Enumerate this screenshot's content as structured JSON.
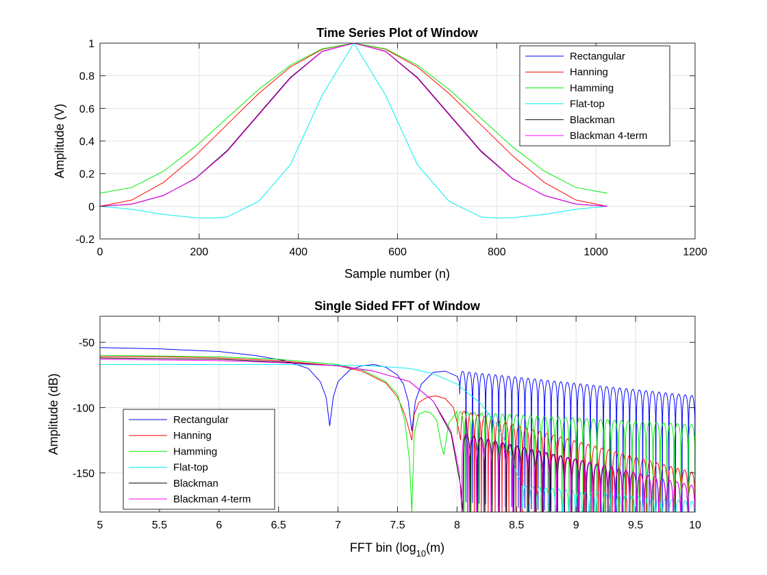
{
  "chart_data": [
    {
      "type": "line",
      "title": "Time Series Plot of Window",
      "xlabel": "Sample number (n)",
      "ylabel": "Amplitude (V)",
      "xlim": [
        0,
        1200
      ],
      "ylim": [
        -0.2,
        1
      ],
      "xticks": [
        0,
        200,
        400,
        600,
        800,
        1000,
        1200
      ],
      "yticks": [
        -0.2,
        0,
        0.2,
        0.4,
        0.6,
        0.8,
        1
      ],
      "xtick_labels": [
        "0",
        "200",
        "400",
        "600",
        "800",
        "1000",
        "1200"
      ],
      "ytick_labels": [
        "-0.2",
        "0",
        "0.2",
        "0.4",
        "0.6",
        "0.8",
        "1"
      ],
      "grid": true,
      "legend_position": "top-right",
      "series": [
        {
          "name": "Rectangular",
          "color": "#0000ff",
          "x": [
            0,
            1023
          ],
          "y": [
            1,
            1
          ]
        },
        {
          "name": "Hanning",
          "color": "#ff0000",
          "x": [
            0,
            64,
            128,
            192,
            256,
            320,
            384,
            448,
            512,
            576,
            640,
            704,
            768,
            832,
            896,
            960,
            1023
          ],
          "y": [
            0,
            0.038,
            0.146,
            0.309,
            0.5,
            0.691,
            0.854,
            0.962,
            1,
            0.962,
            0.854,
            0.691,
            0.5,
            0.309,
            0.146,
            0.038,
            0
          ]
        },
        {
          "name": "Hamming",
          "color": "#00ee00",
          "x": [
            0,
            64,
            128,
            192,
            256,
            320,
            384,
            448,
            512,
            576,
            640,
            704,
            768,
            832,
            896,
            960,
            1023
          ],
          "y": [
            0.08,
            0.115,
            0.215,
            0.364,
            0.54,
            0.716,
            0.865,
            0.965,
            1,
            0.965,
            0.865,
            0.716,
            0.54,
            0.364,
            0.215,
            0.115,
            0.08
          ]
        },
        {
          "name": "Flat-top",
          "color": "#00eeee",
          "x": [
            0,
            64,
            128,
            192,
            224,
            256,
            320,
            384,
            448,
            512,
            576,
            640,
            704,
            768,
            800,
            832,
            896,
            960,
            1023
          ],
          "y": [
            0,
            -0.018,
            -0.05,
            -0.07,
            -0.072,
            -0.066,
            0.03,
            0.255,
            0.68,
            1,
            0.68,
            0.255,
            0.03,
            -0.066,
            -0.072,
            -0.07,
            -0.05,
            -0.018,
            0
          ]
        },
        {
          "name": "Blackman",
          "color": "#000000",
          "x": [
            0,
            64,
            128,
            192,
            256,
            320,
            384,
            448,
            512,
            576,
            640,
            704,
            768,
            832,
            896,
            960,
            1023
          ],
          "y": [
            0,
            0.013,
            0.066,
            0.17,
            0.34,
            0.565,
            0.79,
            0.95,
            1,
            0.95,
            0.79,
            0.565,
            0.34,
            0.17,
            0.066,
            0.013,
            0
          ]
        },
        {
          "name": "Blackman 4-term",
          "color": "#ff00ff",
          "x": [
            0,
            64,
            128,
            192,
            256,
            320,
            384,
            448,
            512,
            576,
            640,
            704,
            768,
            832,
            896,
            960,
            1023
          ],
          "y": [
            0,
            0.014,
            0.067,
            0.168,
            0.335,
            0.56,
            0.785,
            0.948,
            1,
            0.948,
            0.785,
            0.56,
            0.335,
            0.168,
            0.067,
            0.014,
            0
          ]
        }
      ]
    },
    {
      "type": "line",
      "title": "Single Sided FFT of Window",
      "xlabel": "FFT bin (log",
      "xlabel_subscript": "10",
      "xlabel_suffix": "(m)",
      "ylabel": "Amplitude (dB)",
      "xlim": [
        5,
        10
      ],
      "ylim": [
        -180,
        -30
      ],
      "xticks": [
        5,
        5.5,
        6,
        6.5,
        7,
        7.5,
        8,
        8.5,
        9,
        9.5,
        10
      ],
      "yticks": [
        -150,
        -100,
        -50
      ],
      "xtick_labels": [
        "5",
        "5.5",
        "6",
        "6.5",
        "7",
        "7.5",
        "8",
        "8.5",
        "9",
        "9.5",
        "10"
      ],
      "ytick_labels": [
        "-150",
        "-100",
        "-50"
      ],
      "grid": true,
      "legend_position": "bottom-left",
      "series": [
        {
          "name": "Rectangular",
          "color": "#0000ff",
          "x": [
            5,
            5.5,
            6,
            6.3,
            6.55,
            6.75,
            6.85,
            6.9,
            6.93,
            6.96,
            7.0,
            7.1,
            7.2,
            7.3,
            7.4,
            7.5,
            7.55,
            7.59,
            7.62,
            7.65,
            7.7,
            7.8,
            7.9,
            8.0,
            8.02
          ],
          "y": [
            -54,
            -55,
            -57,
            -60,
            -64,
            -70,
            -80,
            -92,
            -114,
            -92,
            -80,
            -71,
            -68,
            -67,
            -69,
            -75,
            -82,
            -95,
            -118,
            -95,
            -82,
            -73,
            -72,
            -76,
            -80
          ],
          "lobes": {
            "start": 8.02,
            "end": 10,
            "zero_count": 36,
            "peak_start": -72,
            "peak_end": -91,
            "null_depth": -180
          }
        },
        {
          "name": "Hanning",
          "color": "#ff0000",
          "x": [
            5,
            5.5,
            6,
            6.5,
            7,
            7.2,
            7.4,
            7.5,
            7.56,
            7.6,
            7.62,
            7.64,
            7.68,
            7.75,
            7.82,
            7.9,
            7.97,
            8.01,
            8.03
          ],
          "y": [
            -61,
            -61,
            -62,
            -64,
            -68,
            -72,
            -81,
            -92,
            -105,
            -118,
            -125,
            -105,
            -96,
            -92,
            -91,
            -93,
            -100,
            -115,
            -125
          ],
          "lobes": {
            "start": 8.03,
            "end": 10,
            "zero_count": 34,
            "peak_start": -102,
            "peak_end": -150,
            "null_depth": -180
          }
        },
        {
          "name": "Hamming",
          "color": "#00ee00",
          "x": [
            5,
            5.5,
            6,
            6.5,
            7,
            7.2,
            7.4,
            7.5,
            7.56,
            7.6,
            7.62,
            7.64,
            7.68,
            7.73,
            7.78,
            7.83,
            7.87,
            7.89,
            7.93,
            8.0
          ],
          "y": [
            -60,
            -60.5,
            -61,
            -63,
            -67,
            -71,
            -80,
            -90,
            -110,
            -140,
            -180,
            -120,
            -105,
            -103,
            -104,
            -110,
            -130,
            -136,
            -112,
            -103
          ],
          "lobes": {
            "start": 8.0,
            "end": 10,
            "zero_count": 34,
            "peak_start": -103,
            "peak_end": -113,
            "null_depth": -180
          }
        },
        {
          "name": "Flat-top",
          "color": "#00eeee",
          "x": [
            5,
            5.5,
            6,
            6.5,
            7,
            7.3,
            7.6,
            7.8,
            8.0,
            8.2,
            8.35,
            8.45,
            8.5,
            8.55
          ],
          "y": [
            -67,
            -67,
            -67,
            -67,
            -67.5,
            -68,
            -70,
            -74,
            -82,
            -97,
            -115,
            -135,
            -150,
            -160
          ],
          "lobes": {
            "start": 8.55,
            "end": 10,
            "zero_count": 26,
            "peak_start": -160,
            "peak_end": -172,
            "null_depth": -180
          }
        },
        {
          "name": "Blackman",
          "color": "#000000",
          "x": [
            5,
            5.5,
            6,
            6.5,
            7,
            7.3,
            7.6,
            7.8,
            7.95,
            8.03,
            8.05
          ],
          "y": [
            -62,
            -62.5,
            -63,
            -65,
            -68,
            -72,
            -80,
            -95,
            -120,
            -160,
            -180
          ],
          "lobes": {
            "start": 8.05,
            "end": 10,
            "zero_count": 32,
            "peak_start": -120,
            "peak_end": -160,
            "null_depth": -180
          }
        },
        {
          "name": "Blackman 4-term",
          "color": "#ff00ff",
          "x": [
            5,
            5.5,
            6,
            6.5,
            7,
            7.3,
            7.6,
            7.8,
            7.95,
            8.02,
            8.04
          ],
          "y": [
            -63,
            -63.5,
            -64,
            -65.5,
            -68,
            -72,
            -80,
            -95,
            -118,
            -150,
            -180
          ],
          "lobes": {
            "start": 8.04,
            "end": 10,
            "zero_count": 32,
            "peak_start": -120,
            "peak_end": -160,
            "null_depth": -180
          }
        }
      ]
    }
  ]
}
